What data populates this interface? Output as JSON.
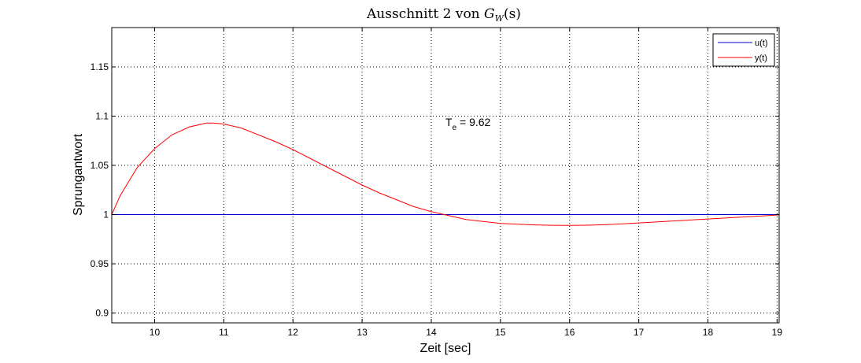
{
  "chart_data": {
    "type": "line",
    "title": "Ausschnitt 2 von G_W(s)",
    "title_parts": {
      "prefix": "Ausschnitt 2 von ",
      "symbol": "G",
      "subscript": "W",
      "suffix": "(s)"
    },
    "xlabel": "Zeit [sec]",
    "ylabel": "Sprungantwort",
    "xlim": [
      9.38,
      19.03
    ],
    "ylim": [
      0.89,
      1.19
    ],
    "xticks": [
      10,
      11,
      12,
      13,
      14,
      15,
      16,
      17,
      18,
      19
    ],
    "xtick_labels": [
      "10",
      "11",
      "12",
      "13",
      "14",
      "15",
      "16",
      "17",
      "18",
      "19"
    ],
    "yticks": [
      0.9,
      0.95,
      1.0,
      1.05,
      1.1,
      1.15
    ],
    "ytick_labels": [
      "0.9",
      "0.95",
      "1",
      "1.05",
      "1.1",
      "1.15"
    ],
    "grid": true,
    "legend_position": "top-right",
    "annotation": {
      "text_main": "T",
      "text_sub": "e",
      "text_rest": " = 9.62",
      "x": 14.2,
      "y": 1.095
    },
    "series": [
      {
        "name": "u(t)",
        "color": "#0000cc",
        "x": [
          9.38,
          19.03
        ],
        "y": [
          1.0,
          1.0
        ]
      },
      {
        "name": "y(t)",
        "color": "#ff0000",
        "x": [
          9.38,
          9.5,
          9.75,
          10.0,
          10.25,
          10.5,
          10.75,
          10.85,
          11.0,
          11.25,
          11.5,
          11.75,
          12.0,
          12.25,
          12.5,
          12.75,
          13.0,
          13.25,
          13.5,
          13.75,
          14.0,
          14.25,
          14.5,
          14.75,
          15.0,
          15.25,
          15.5,
          15.75,
          16.0,
          16.25,
          16.5,
          16.75,
          17.0,
          17.25,
          17.5,
          17.75,
          18.0,
          18.25,
          18.5,
          18.75,
          19.0,
          19.03
        ],
        "y": [
          1.0,
          1.019,
          1.048,
          1.067,
          1.081,
          1.089,
          1.093,
          1.093,
          1.092,
          1.088,
          1.081,
          1.074,
          1.066,
          1.057,
          1.048,
          1.039,
          1.03,
          1.022,
          1.015,
          1.008,
          1.003,
          0.999,
          0.995,
          0.993,
          0.991,
          0.9902,
          0.9895,
          0.9891,
          0.989,
          0.9892,
          0.9897,
          0.9905,
          0.9915,
          0.9925,
          0.9935,
          0.9945,
          0.9955,
          0.9965,
          0.9975,
          0.9985,
          0.9995,
          1.0
        ]
      }
    ]
  }
}
